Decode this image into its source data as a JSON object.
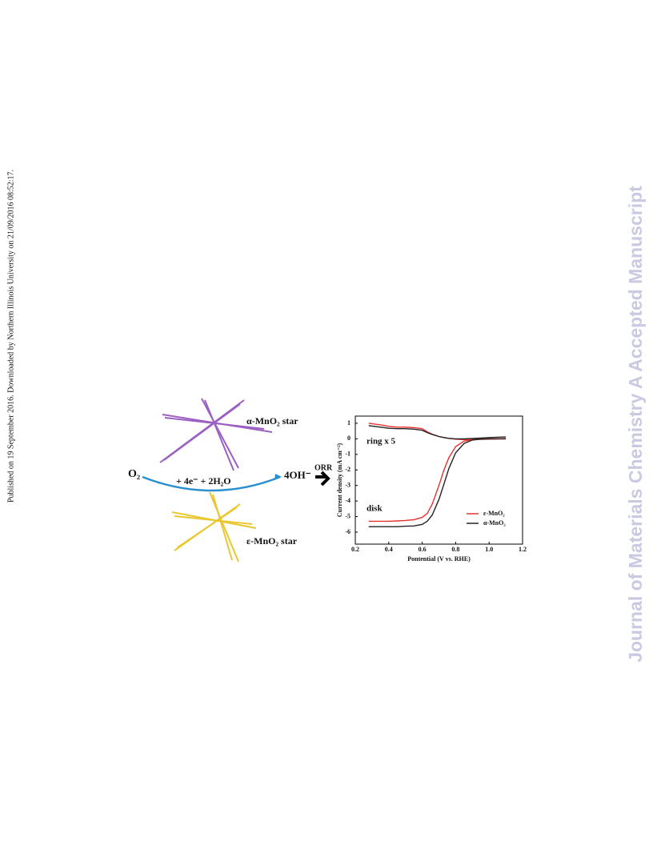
{
  "side_note": "Published on 19 September 2016. Downloaded by Northern Illinois University on 21/09/2016 08:52:17.",
  "watermark": "Journal of Materials Chemistry A Accepted Manuscript",
  "graphic": {
    "alpha_star": "α-MnO₂ star",
    "epsilon_star": "ε-MnO₂ star",
    "reactant": "O₂",
    "reagents": "+ 4e⁻ + 2H₂O",
    "product": "4OH⁻",
    "arrow_label": "ORR"
  },
  "chart_data": {
    "type": "line",
    "x_label": "Pontential (V vs. RHE)",
    "y_label": "Current density (mA cm⁻²)",
    "annotations": [
      "ring x 5",
      "disk"
    ],
    "x": [
      0.28,
      0.35,
      0.4,
      0.45,
      0.5,
      0.55,
      0.6,
      0.63,
      0.66,
      0.7,
      0.73,
      0.76,
      0.8,
      0.85,
      0.9,
      0.95,
      1.0,
      1.05,
      1.1
    ],
    "series": [
      {
        "name": "ε-MnO₂",
        "color": "#e8322f",
        "values": [
          -5.3,
          -5.3,
          -5.3,
          -5.28,
          -5.25,
          -5.2,
          -5.05,
          -4.8,
          -4.2,
          -3.0,
          -2.0,
          -1.2,
          -0.5,
          -0.15,
          -0.05,
          0,
          0,
          0,
          0
        ],
        "ring": [
          1.0,
          0.9,
          0.8,
          0.75,
          0.75,
          0.72,
          0.65,
          0.45,
          0.3,
          0.15,
          0.08,
          0.03,
          -0.02,
          -0.05,
          -0.05,
          -0.03,
          -0.02,
          0,
          0.02
        ]
      },
      {
        "name": "α-MnO₂",
        "color": "#222222",
        "values": [
          -5.65,
          -5.65,
          -5.65,
          -5.65,
          -5.62,
          -5.6,
          -5.5,
          -5.3,
          -4.9,
          -3.9,
          -2.9,
          -1.9,
          -0.9,
          -0.3,
          -0.08,
          -0.02,
          0,
          0,
          0
        ],
        "ring": [
          0.85,
          0.75,
          0.68,
          0.65,
          0.65,
          0.62,
          0.55,
          0.4,
          0.28,
          0.15,
          0.08,
          0.03,
          0,
          0,
          0.02,
          0.05,
          0.08,
          0.1,
          0.12
        ]
      }
    ],
    "xlim": [
      0.2,
      1.2
    ],
    "xticks": [
      0.2,
      0.4,
      0.6,
      0.8,
      {
        "value": 1,
        "label": "1.0"
      },
      1.2
    ],
    "ylim": [
      -6.77,
      1.46
    ],
    "yticks": [
      -6,
      -5,
      -4,
      -3,
      -2,
      -1,
      0,
      1
    ]
  }
}
